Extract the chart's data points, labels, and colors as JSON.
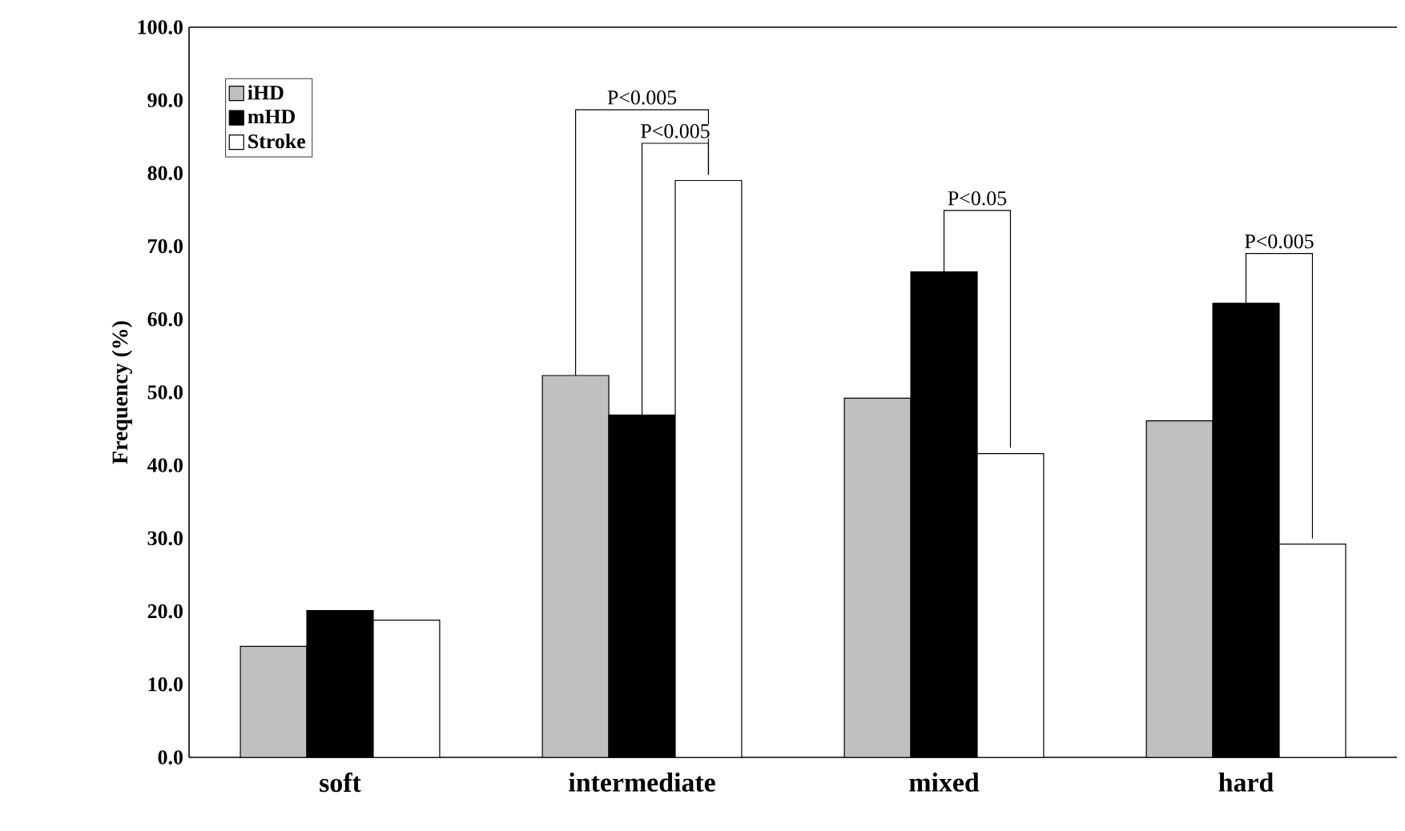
{
  "chart_data": {
    "type": "bar",
    "ylabel": "Frequency (%)",
    "categories": [
      "soft",
      "intermediate",
      "mixed",
      "hard"
    ],
    "series": [
      {
        "name": "iHD",
        "color": "#c0c0c0",
        "values": [
          15.2,
          52.3,
          49.2,
          46.1
        ]
      },
      {
        "name": "mHD",
        "color": "#000000",
        "values": [
          20.1,
          46.9,
          66.5,
          62.2
        ]
      },
      {
        "name": "Stroke",
        "color": "#ffffff",
        "values": [
          18.8,
          79.0,
          41.6,
          29.2
        ]
      }
    ],
    "ylim": [
      0,
      100
    ],
    "yticks": [
      {
        "value": 0,
        "label": "0.0"
      },
      {
        "value": 10,
        "label": "10.0"
      },
      {
        "value": 20,
        "label": "20.0"
      },
      {
        "value": 30,
        "label": "30.0"
      },
      {
        "value": 40,
        "label": "40.0"
      },
      {
        "value": 50,
        "label": "50.0"
      },
      {
        "value": 60,
        "label": "60.0"
      },
      {
        "value": 70,
        "label": "70.0"
      },
      {
        "value": 80,
        "label": "80.0"
      },
      {
        "value": 90,
        "label": "90.0"
      },
      {
        "value": 100,
        "label": "100.0"
      }
    ],
    "legend": "top left",
    "annotations": [
      "P<0.005",
      "P<0.005",
      "P<0.05",
      "P<0.005"
    ]
  }
}
